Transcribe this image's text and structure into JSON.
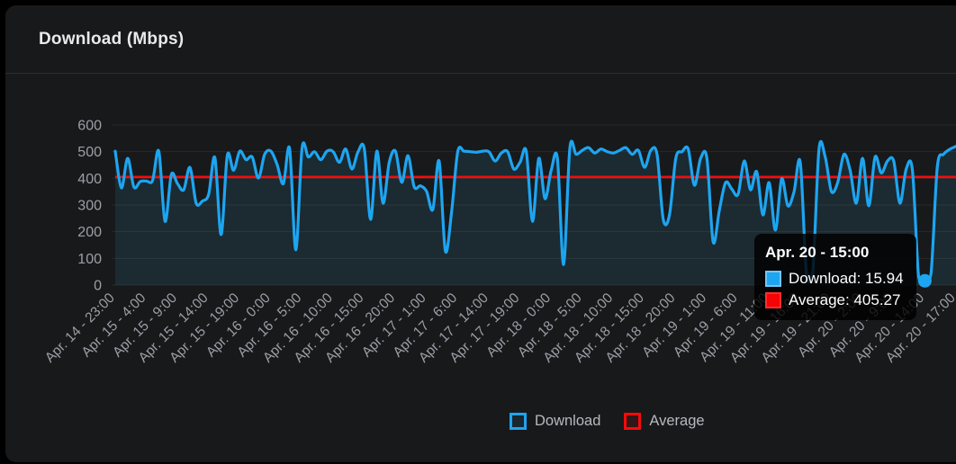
{
  "card": {
    "title": "Download (Mbps)"
  },
  "chart_data": {
    "type": "line",
    "title": "Download (Mbps)",
    "xlabel": "",
    "ylabel": "Mbps",
    "ylim": [
      0,
      600
    ],
    "y_ticks": [
      0,
      100,
      200,
      300,
      400,
      500,
      600
    ],
    "grid": true,
    "legend_position": "bottom",
    "x_ticks_every": 5,
    "x_tick_labels": [
      "Apr. 14 - 23:00",
      "Apr. 15 - 4:00",
      "Apr. 15 - 9:00",
      "Apr. 15 - 14:00",
      "Apr. 15 - 19:00",
      "Apr. 16 - 0:00",
      "Apr. 16 - 5:00",
      "Apr. 16 - 10:00",
      "Apr. 16 - 15:00",
      "Apr. 16 - 20:00",
      "Apr. 17 - 1:00",
      "Apr. 17 - 6:00",
      "Apr. 17 - 14:00",
      "Apr. 17 - 19:00",
      "Apr. 18 - 0:00",
      "Apr. 18 - 5:00",
      "Apr. 18 - 10:00",
      "Apr. 18 - 15:00",
      "Apr. 18 - 20:00",
      "Apr. 19 - 1:00",
      "Apr. 19 - 6:00",
      "Apr. 19 - 11:00",
      "Apr. 19 - 16:00",
      "Apr. 19 - 21:00",
      "Apr. 20 - 2:00",
      "Apr. 20 - 9:00",
      "Apr. 20 - 14:00",
      "Apr. 20 - 17:00"
    ],
    "series": [
      {
        "name": "Download",
        "color": "#1da5f0",
        "values": [
          502,
          364,
          475,
          367,
          388,
          390,
          392,
          502,
          239,
          414,
          380,
          357,
          441,
          307,
          315,
          340,
          478,
          189,
          486,
          430,
          502,
          470,
          480,
          401,
          490,
          502,
          451,
          380,
          512,
          132,
          515,
          480,
          500,
          470,
          502,
          500,
          460,
          510,
          435,
          500,
          510,
          246,
          502,
          307,
          460,
          502,
          385,
          485,
          368,
          372,
          351,
          283,
          465,
          128,
          272,
          500,
          502,
          500,
          498,
          502,
          500,
          465,
          495,
          500,
          435,
          460,
          502,
          239,
          475,
          324,
          430,
          475,
          77,
          515,
          490,
          505,
          515,
          495,
          510,
          500,
          495,
          505,
          515,
          490,
          505,
          441,
          505,
          490,
          246,
          263,
          475,
          500,
          510,
          374,
          475,
          475,
          162,
          280,
          384,
          360,
          340,
          465,
          357,
          425,
          263,
          384,
          206,
          398,
          297,
          350,
          460,
          37,
          47,
          509,
          480,
          351,
          384,
          490,
          430,
          307,
          475,
          297,
          480,
          420,
          465,
          465,
          307,
          435,
          430,
          30,
          15.94,
          44,
          442,
          490,
          509,
          520
        ]
      },
      {
        "name": "Average",
        "type": "constant",
        "color": "#fa0a0a",
        "value": 405.27
      }
    ],
    "highlight": {
      "index": 130,
      "label": "Apr. 20 - 15:00",
      "download": 15.94,
      "average": 405.27
    }
  },
  "tooltip": {
    "title": "Apr. 20 - 15:00",
    "rows": [
      {
        "key": "download",
        "text": "Download: 15.94",
        "color": "#1da5f0"
      },
      {
        "key": "average",
        "text": "Average: 405.27",
        "color": "#f40404"
      }
    ]
  },
  "legend": {
    "items": [
      {
        "label": "Download",
        "color": "#1da5f0"
      },
      {
        "label": "Average",
        "color": "#fa0a0a"
      }
    ]
  },
  "colors": {
    "download_line": "#1da5f0",
    "average_line": "#fa0a0a",
    "area_fill": "#1c2a31",
    "grid_line": "rgba(255,255,255,0.07)",
    "tick_text": "#9aa0a6",
    "card_bg": "#18191b",
    "tooltip_bg": "rgba(0,0,0,0.82)"
  }
}
